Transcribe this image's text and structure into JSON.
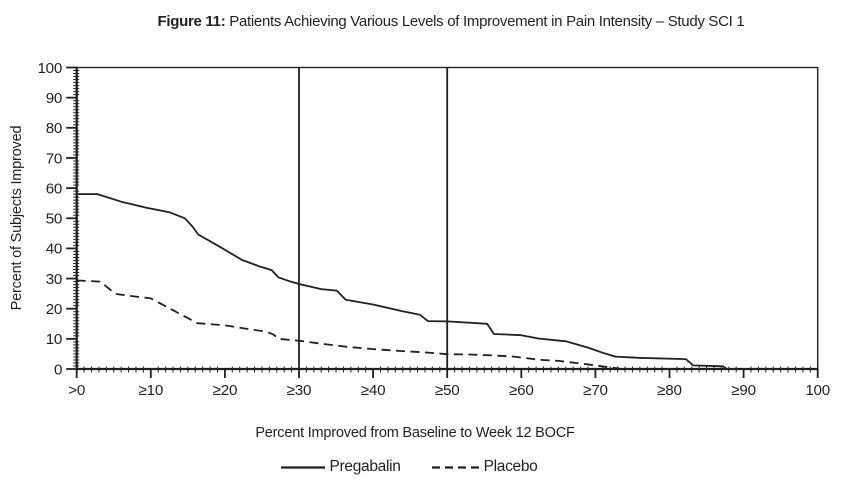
{
  "figure": {
    "title_prefix": "Figure 11:",
    "title_text": "Patients Achieving Various Levels of Improvement in Pain Intensity – Study SCI 1"
  },
  "colors": {
    "ink": "#231f20",
    "background": "#ffffff"
  },
  "chart_data": {
    "type": "line",
    "title": "Figure 11: Patients Achieving Various Levels of Improvement in Pain Intensity – Study SCI 1",
    "xlabel": "Percent Improved from Baseline to Week 12 BOCF",
    "ylabel": "Percent of Subjects Improved",
    "xlim": [
      0,
      100
    ],
    "ylim": [
      0,
      100
    ],
    "grid": false,
    "legend_position": "bottom",
    "minor_tick_step": 1,
    "reference_lines_x": [
      30,
      50
    ],
    "x_ticks": [
      {
        "v": 0,
        "label": ">0"
      },
      {
        "v": 10,
        "label": "≥10"
      },
      {
        "v": 20,
        "label": "≥20"
      },
      {
        "v": 30,
        "label": "≥30"
      },
      {
        "v": 40,
        "label": "≥40"
      },
      {
        "v": 50,
        "label": "≥50"
      },
      {
        "v": 60,
        "label": "≥60"
      },
      {
        "v": 70,
        "label": "≥70"
      },
      {
        "v": 80,
        "label": "≥80"
      },
      {
        "v": 90,
        "label": "≥90"
      },
      {
        "v": 100,
        "label": "100"
      }
    ],
    "y_ticks": [
      {
        "v": 0,
        "label": "0"
      },
      {
        "v": 10,
        "label": "10"
      },
      {
        "v": 20,
        "label": "20"
      },
      {
        "v": 30,
        "label": "30"
      },
      {
        "v": 40,
        "label": "40"
      },
      {
        "v": 50,
        "label": "50"
      },
      {
        "v": 60,
        "label": "60"
      },
      {
        "v": 70,
        "label": "70"
      },
      {
        "v": 80,
        "label": "80"
      },
      {
        "v": 90,
        "label": "90"
      },
      {
        "v": 100,
        "label": "100"
      }
    ],
    "series": [
      {
        "name": "Pregabalin",
        "line_style": "solid",
        "color": "#231f20",
        "points": [
          [
            0,
            58
          ],
          [
            2.8,
            58
          ],
          [
            6,
            55.5
          ],
          [
            9.4,
            53.5
          ],
          [
            12.5,
            52
          ],
          [
            14.6,
            50
          ],
          [
            15.6,
            47.3
          ],
          [
            16.4,
            44.6
          ],
          [
            19.2,
            40.7
          ],
          [
            22.3,
            36.2
          ],
          [
            24.8,
            33.9
          ],
          [
            26.3,
            32.8
          ],
          [
            27.2,
            30.4
          ],
          [
            28.5,
            29.3
          ],
          [
            30,
            28.2
          ],
          [
            33,
            26.5
          ],
          [
            35.1,
            26
          ],
          [
            36.3,
            23
          ],
          [
            40,
            21.4
          ],
          [
            43.9,
            19.2
          ],
          [
            46.3,
            18
          ],
          [
            47.4,
            15.9
          ],
          [
            50,
            15.8
          ],
          [
            55.4,
            15
          ],
          [
            56.3,
            11.6
          ],
          [
            60,
            11.2
          ],
          [
            62.3,
            10.1
          ],
          [
            66,
            9.2
          ],
          [
            69,
            7.1
          ],
          [
            71.2,
            5.2
          ],
          [
            72.7,
            4.1
          ],
          [
            75.7,
            3.7
          ],
          [
            82.2,
            3.3
          ],
          [
            83.2,
            1.2
          ],
          [
            87.2,
            0.9
          ],
          [
            87.7,
            0.1
          ]
        ]
      },
      {
        "name": "Placebo",
        "line_style": "dashed",
        "color": "#231f20",
        "points": [
          [
            0,
            29.4
          ],
          [
            3.2,
            29
          ],
          [
            5.2,
            24.9
          ],
          [
            8,
            24
          ],
          [
            10,
            23.4
          ],
          [
            13,
            19.5
          ],
          [
            16.3,
            15.2
          ],
          [
            20,
            14.5
          ],
          [
            23,
            13.3
          ],
          [
            25.5,
            12.4
          ],
          [
            26.5,
            11.5
          ],
          [
            27.3,
            10
          ],
          [
            30,
            9.4
          ],
          [
            33,
            8.4
          ],
          [
            36.3,
            7.4
          ],
          [
            40,
            6.6
          ],
          [
            43.5,
            6
          ],
          [
            47,
            5.5
          ],
          [
            50,
            4.9
          ],
          [
            53,
            4.8
          ],
          [
            56,
            4.5
          ],
          [
            59,
            4.1
          ],
          [
            62.3,
            3.1
          ],
          [
            65,
            2.7
          ],
          [
            67.8,
            1.9
          ],
          [
            70,
            1.2
          ],
          [
            72,
            0.5
          ],
          [
            73.2,
            0.2
          ]
        ]
      }
    ]
  }
}
